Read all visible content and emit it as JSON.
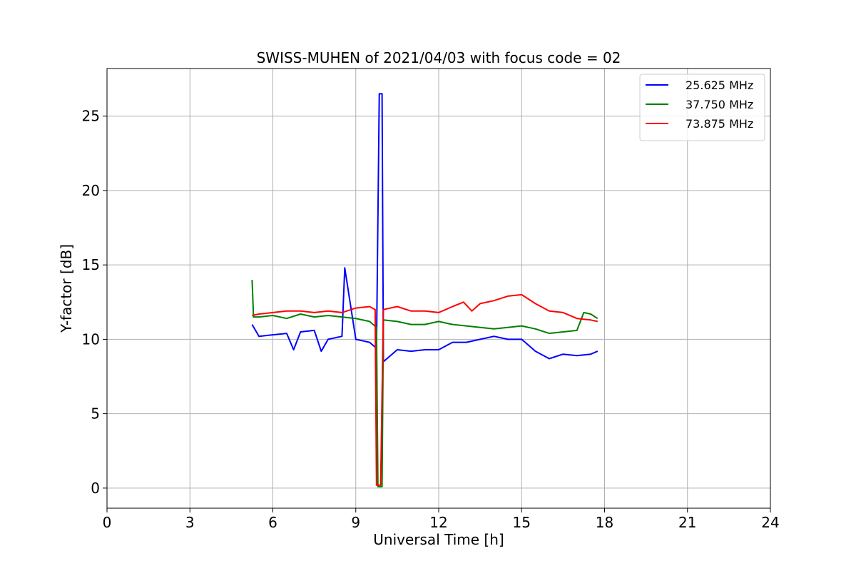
{
  "chart_data": {
    "type": "line",
    "title": "SWISS-MUHEN of 2021/04/03 with focus code = 02",
    "xlabel": "Universal Time [h]",
    "ylabel": "Y-factor [dB]",
    "xlim": [
      0,
      24
    ],
    "ylim": [
      -1.35,
      28.2
    ],
    "xticks": [
      0,
      3,
      6,
      9,
      12,
      15,
      18,
      21,
      24
    ],
    "yticks": [
      0,
      5,
      10,
      15,
      20,
      25
    ],
    "grid": true,
    "legend_position": "top-right",
    "series": [
      {
        "name": "25.625 MHz",
        "color": "#0000ff",
        "x": [
          5.25,
          5.5,
          6.0,
          6.5,
          6.75,
          7.0,
          7.5,
          7.75,
          8.0,
          8.5,
          8.6,
          9.0,
          9.5,
          9.75,
          9.85,
          9.95,
          10.0,
          10.5,
          11.0,
          11.5,
          12.0,
          12.5,
          13.0,
          13.5,
          14.0,
          14.5,
          15.0,
          15.5,
          16.0,
          16.5,
          17.0,
          17.5,
          17.75
        ],
        "y": [
          11.0,
          10.2,
          10.3,
          10.4,
          9.3,
          10.5,
          10.6,
          9.2,
          10.0,
          10.2,
          14.8,
          10.0,
          9.8,
          9.4,
          26.5,
          26.5,
          8.5,
          9.3,
          9.2,
          9.3,
          9.3,
          9.8,
          9.8,
          10.0,
          10.2,
          10.0,
          10.0,
          9.2,
          8.7,
          9.0,
          8.9,
          9.0,
          9.2
        ]
      },
      {
        "name": "37.750 MHz",
        "color": "#008000",
        "x": [
          5.25,
          5.3,
          5.5,
          6.0,
          6.5,
          7.0,
          7.5,
          8.0,
          8.5,
          9.0,
          9.5,
          9.75,
          9.8,
          9.95,
          10.0,
          10.5,
          11.0,
          11.5,
          12.0,
          12.5,
          13.0,
          13.5,
          14.0,
          14.5,
          15.0,
          15.5,
          16.0,
          16.5,
          17.0,
          17.25,
          17.5,
          17.75
        ],
        "y": [
          14.0,
          11.5,
          11.5,
          11.6,
          11.4,
          11.7,
          11.5,
          11.6,
          11.5,
          11.4,
          11.2,
          10.8,
          0.1,
          0.1,
          11.3,
          11.2,
          11.0,
          11.0,
          11.2,
          11.0,
          10.9,
          10.8,
          10.7,
          10.8,
          10.9,
          10.7,
          10.4,
          10.5,
          10.6,
          11.8,
          11.7,
          11.4
        ]
      },
      {
        "name": "73.875 MHz",
        "color": "#ff0000",
        "x": [
          5.25,
          5.5,
          6.0,
          6.5,
          7.0,
          7.5,
          8.0,
          8.5,
          9.0,
          9.5,
          9.7,
          9.75,
          9.9,
          10.0,
          10.5,
          11.0,
          11.5,
          12.0,
          12.5,
          12.9,
          13.2,
          13.5,
          14.0,
          14.5,
          15.0,
          15.5,
          16.0,
          16.5,
          17.0,
          17.5,
          17.75
        ],
        "y": [
          11.6,
          11.7,
          11.8,
          11.9,
          11.9,
          11.8,
          11.9,
          11.8,
          12.1,
          12.2,
          12.0,
          0.2,
          0.2,
          12.0,
          12.2,
          11.9,
          11.9,
          11.8,
          12.2,
          12.5,
          11.9,
          12.4,
          12.6,
          12.9,
          13.0,
          12.4,
          11.9,
          11.8,
          11.4,
          11.3,
          11.2
        ]
      }
    ]
  }
}
